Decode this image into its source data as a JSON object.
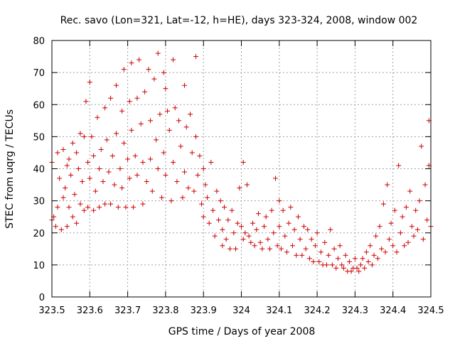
{
  "chart_data": {
    "type": "scatter",
    "title": "Rec. savo (Lon=321, Lat=-12, h=HE), days 323-324, 2008, window 002",
    "xlabel": "GPS time / Days of year 2008",
    "ylabel": "STEC from uqrg / TECUs",
    "xlim": [
      323.5,
      324.5
    ],
    "ylim": [
      0,
      80
    ],
    "x_ticks": [
      323.5,
      323.6,
      323.7,
      323.8,
      323.9,
      324,
      324.1,
      324.2,
      324.3,
      324.4,
      324.5
    ],
    "x_tick_labels": [
      "323.5",
      "323.6",
      "323.7",
      "323.8",
      "323.9",
      "324",
      "324.1",
      "324.2",
      "324.3",
      "324.4",
      "324.5"
    ],
    "y_ticks": [
      0,
      10,
      20,
      30,
      40,
      50,
      60,
      70,
      80
    ],
    "y_tick_labels": [
      "0",
      "10",
      "20",
      "30",
      "40",
      "50",
      "60",
      "70",
      "80"
    ],
    "grid": true,
    "marker": "+",
    "marker_color": "#cc0000",
    "series": [
      {
        "points": [
          [
            323.5,
            24
          ],
          [
            323.5,
            42
          ],
          [
            323.505,
            25
          ],
          [
            323.51,
            22
          ],
          [
            323.515,
            28
          ],
          [
            323.515,
            45
          ],
          [
            323.52,
            37
          ],
          [
            323.525,
            21
          ],
          [
            323.53,
            31
          ],
          [
            323.53,
            46
          ],
          [
            323.535,
            34
          ],
          [
            323.54,
            22
          ],
          [
            323.54,
            41
          ],
          [
            323.545,
            28
          ],
          [
            323.545,
            43
          ],
          [
            323.55,
            38
          ],
          [
            323.555,
            25
          ],
          [
            323.555,
            48
          ],
          [
            323.56,
            32
          ],
          [
            323.565,
            45
          ],
          [
            323.565,
            23
          ],
          [
            323.57,
            40
          ],
          [
            323.575,
            29
          ],
          [
            323.575,
            51
          ],
          [
            323.58,
            36
          ],
          [
            323.585,
            27
          ],
          [
            323.585,
            50
          ],
          [
            323.59,
            61
          ],
          [
            323.595,
            42
          ],
          [
            323.595,
            28
          ],
          [
            323.6,
            67
          ],
          [
            323.6,
            37
          ],
          [
            323.605,
            50
          ],
          [
            323.61,
            27
          ],
          [
            323.61,
            44
          ],
          [
            323.615,
            33
          ],
          [
            323.62,
            56
          ],
          [
            323.625,
            40
          ],
          [
            323.625,
            28
          ],
          [
            323.63,
            46
          ],
          [
            323.635,
            36
          ],
          [
            323.64,
            59
          ],
          [
            323.64,
            29
          ],
          [
            323.645,
            49
          ],
          [
            323.65,
            39
          ],
          [
            323.655,
            62
          ],
          [
            323.655,
            29
          ],
          [
            323.66,
            44
          ],
          [
            323.665,
            35
          ],
          [
            323.67,
            66
          ],
          [
            323.67,
            51
          ],
          [
            323.675,
            28
          ],
          [
            323.68,
            40
          ],
          [
            323.685,
            58
          ],
          [
            323.685,
            34
          ],
          [
            323.69,
            71
          ],
          [
            323.69,
            48
          ],
          [
            323.695,
            28
          ],
          [
            323.7,
            43
          ],
          [
            323.705,
            61
          ],
          [
            323.705,
            37
          ],
          [
            323.71,
            73
          ],
          [
            323.71,
            52
          ],
          [
            323.715,
            28
          ],
          [
            323.72,
            44
          ],
          [
            323.725,
            62
          ],
          [
            323.725,
            38
          ],
          [
            323.73,
            74
          ],
          [
            323.735,
            54
          ],
          [
            323.74,
            29
          ],
          [
            323.74,
            42
          ],
          [
            323.745,
            64
          ],
          [
            323.75,
            36
          ],
          [
            323.755,
            71
          ],
          [
            323.76,
            55
          ],
          [
            323.76,
            43
          ],
          [
            323.765,
            33
          ],
          [
            323.77,
            68
          ],
          [
            323.775,
            49
          ],
          [
            323.78,
            76
          ],
          [
            323.78,
            40
          ],
          [
            323.785,
            57
          ],
          [
            323.79,
            31
          ],
          [
            323.795,
            70
          ],
          [
            323.795,
            45
          ],
          [
            323.8,
            65
          ],
          [
            323.8,
            38
          ],
          [
            323.805,
            58
          ],
          [
            323.81,
            52
          ],
          [
            323.815,
            30
          ],
          [
            323.82,
            74
          ],
          [
            323.82,
            42
          ],
          [
            323.825,
            59
          ],
          [
            323.83,
            36
          ],
          [
            323.835,
            55
          ],
          [
            323.84,
            47
          ],
          [
            323.845,
            31
          ],
          [
            323.85,
            66
          ],
          [
            323.85,
            39
          ],
          [
            323.855,
            53
          ],
          [
            323.86,
            34
          ],
          [
            323.865,
            57
          ],
          [
            323.87,
            45
          ],
          [
            323.875,
            33
          ],
          [
            323.88,
            50
          ],
          [
            323.88,
            75
          ],
          [
            323.885,
            38
          ],
          [
            323.89,
            44
          ],
          [
            323.895,
            29
          ],
          [
            323.9,
            40
          ],
          [
            323.9,
            25
          ],
          [
            323.905,
            35
          ],
          [
            323.91,
            31
          ],
          [
            323.915,
            23
          ],
          [
            323.92,
            42
          ],
          [
            323.925,
            27
          ],
          [
            323.93,
            19
          ],
          [
            323.935,
            33
          ],
          [
            323.94,
            24
          ],
          [
            323.945,
            30
          ],
          [
            323.95,
            21
          ],
          [
            323.95,
            16
          ],
          [
            323.955,
            28
          ],
          [
            323.96,
            18
          ],
          [
            323.965,
            24
          ],
          [
            323.97,
            15
          ],
          [
            323.975,
            27
          ],
          [
            323.98,
            20
          ],
          [
            323.985,
            15
          ],
          [
            323.99,
            23
          ],
          [
            323.995,
            34
          ],
          [
            324.0,
            22
          ],
          [
            324.005,
            42
          ],
          [
            324.005,
            18
          ],
          [
            324.01,
            20
          ],
          [
            324.015,
            35
          ],
          [
            324.02,
            19
          ],
          [
            324.025,
            17
          ],
          [
            324.03,
            23
          ],
          [
            324.035,
            16
          ],
          [
            324.04,
            21
          ],
          [
            324.045,
            26
          ],
          [
            324.05,
            17
          ],
          [
            324.055,
            15
          ],
          [
            324.06,
            22
          ],
          [
            324.065,
            25
          ],
          [
            324.07,
            18
          ],
          [
            324.075,
            15
          ],
          [
            324.08,
            27
          ],
          [
            324.085,
            20
          ],
          [
            324.09,
            37
          ],
          [
            324.095,
            16
          ],
          [
            324.1,
            30
          ],
          [
            324.1,
            22
          ],
          [
            324.105,
            15
          ],
          [
            324.11,
            27
          ],
          [
            324.115,
            19
          ],
          [
            324.12,
            14
          ],
          [
            324.125,
            23
          ],
          [
            324.13,
            28
          ],
          [
            324.135,
            16
          ],
          [
            324.14,
            21
          ],
          [
            324.145,
            13
          ],
          [
            324.15,
            25
          ],
          [
            324.155,
            18
          ],
          [
            324.16,
            13
          ],
          [
            324.165,
            22
          ],
          [
            324.17,
            15
          ],
          [
            324.175,
            21
          ],
          [
            324.18,
            12
          ],
          [
            324.185,
            18
          ],
          [
            324.19,
            11
          ],
          [
            324.195,
            16
          ],
          [
            324.2,
            20
          ],
          [
            324.205,
            11
          ],
          [
            324.21,
            14
          ],
          [
            324.215,
            10
          ],
          [
            324.22,
            17
          ],
          [
            324.225,
            10
          ],
          [
            324.23,
            13
          ],
          [
            324.235,
            21
          ],
          [
            324.24,
            10
          ],
          [
            324.245,
            15
          ],
          [
            324.25,
            9
          ],
          [
            324.255,
            12
          ],
          [
            324.26,
            16
          ],
          [
            324.265,
            10
          ],
          [
            324.27,
            9
          ],
          [
            324.275,
            13
          ],
          [
            324.28,
            8
          ],
          [
            324.285,
            11
          ],
          [
            324.29,
            8
          ],
          [
            324.295,
            9
          ],
          [
            324.3,
            12
          ],
          [
            324.305,
            9
          ],
          [
            324.31,
            8
          ],
          [
            324.315,
            10
          ],
          [
            324.32,
            12
          ],
          [
            324.325,
            9
          ],
          [
            324.33,
            14
          ],
          [
            324.335,
            11
          ],
          [
            324.34,
            16
          ],
          [
            324.345,
            10
          ],
          [
            324.35,
            13
          ],
          [
            324.355,
            19
          ],
          [
            324.36,
            12
          ],
          [
            324.365,
            22
          ],
          [
            324.37,
            15
          ],
          [
            324.375,
            29
          ],
          [
            324.38,
            14
          ],
          [
            324.385,
            35
          ],
          [
            324.39,
            18
          ],
          [
            324.395,
            23
          ],
          [
            324.4,
            16
          ],
          [
            324.405,
            27
          ],
          [
            324.41,
            14
          ],
          [
            324.415,
            41
          ],
          [
            324.42,
            20
          ],
          [
            324.425,
            25
          ],
          [
            324.43,
            16
          ],
          [
            324.435,
            28
          ],
          [
            324.44,
            17
          ],
          [
            324.445,
            33
          ],
          [
            324.45,
            22
          ],
          [
            324.455,
            19
          ],
          [
            324.46,
            27
          ],
          [
            324.465,
            21
          ],
          [
            324.47,
            30
          ],
          [
            324.475,
            47
          ],
          [
            324.48,
            18
          ],
          [
            324.485,
            35
          ],
          [
            324.49,
            24
          ],
          [
            324.495,
            55
          ],
          [
            324.495,
            41
          ],
          [
            324.5,
            22
          ]
        ]
      }
    ]
  }
}
